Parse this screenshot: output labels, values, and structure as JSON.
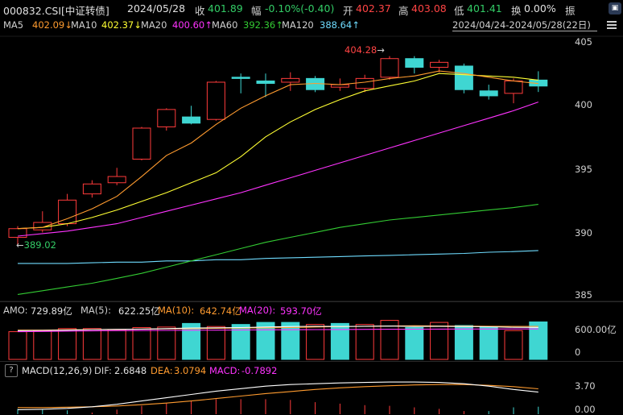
{
  "header": {
    "code": "000832.CSI[中证转债]",
    "date": "2024/05/28",
    "close_label": "收",
    "close_value": "401.89",
    "change_label": "幅",
    "change_value": "-0.10%(-0.40)",
    "open_label": "开",
    "open_value": "402.37",
    "high_label": "高",
    "high_value": "403.08",
    "low_label": "低",
    "low_value": "401.41",
    "turnover_label": "换",
    "turnover_value": "0.00%",
    "amplitude_label": "振"
  },
  "ma_legend": {
    "ma5_label": "MA5",
    "ma5_value": "402.09↓",
    "ma10_label": "MA10",
    "ma10_value": "402.37↓",
    "ma20_label": "MA20",
    "ma20_value": "400.60↑",
    "ma60_label": "MA60",
    "ma60_value": "392.36↑",
    "ma120_label": "MA120",
    "ma120_value": "388.64↑",
    "date_range": "2024/04/24-2024/05/28(22日)"
  },
  "price_axis": {
    "ticks": [
      "405",
      "400",
      "395",
      "390",
      "385"
    ],
    "max_annotation": "404.28",
    "min_annotation": "389.02"
  },
  "volume_legend": {
    "amo_label": "AMO:",
    "amo_value": "729.89亿",
    "ma5_label": "MA(5):",
    "ma5_value": "622.25亿",
    "ma10_label": "MA(10):",
    "ma10_value": "642.74亿",
    "ma20_label": "MA(20):",
    "ma20_value": "593.70亿",
    "ticks": [
      "600.00亿",
      "0"
    ]
  },
  "macd_legend": {
    "help_label": "?",
    "title": "MACD(12,26,9)",
    "dif_label": "DIF:",
    "dif_value": "2.6848",
    "dea_label": "DEA:",
    "dea_value": "3.0794",
    "macd_label": "MACD:",
    "macd_value": "-0.7892",
    "ticks": [
      "3.70",
      "0.00"
    ]
  },
  "colors": {
    "up": "#ff3b3b",
    "down": "#3fd6d2",
    "ma5": "#ffffff",
    "ma10": "#ffff33",
    "ma20": "#ff33ff",
    "ma60": "#33cc33",
    "ma120": "#6fdcff",
    "price_orange": "#ff9b2f",
    "green_text": "#33cc66",
    "red_text": "#ff4444"
  },
  "chart_data": [
    {
      "type": "candlestick",
      "title": "000832.CSI[中证转债]",
      "y_range": [
        384.8,
        405.9
      ],
      "candles": [
        {
          "open": 389.7,
          "close": 390.4,
          "high": 390.6,
          "low": 389.0
        },
        {
          "open": 390.3,
          "close": 390.9,
          "high": 391.8,
          "low": 390.1
        },
        {
          "open": 390.8,
          "close": 392.7,
          "high": 393.2,
          "low": 390.6
        },
        {
          "open": 393.2,
          "close": 394.0,
          "high": 394.3,
          "low": 392.9
        },
        {
          "open": 394.1,
          "close": 394.6,
          "high": 395.3,
          "low": 393.9
        },
        {
          "open": 396.0,
          "close": 398.5,
          "high": 398.6,
          "low": 395.9
        },
        {
          "open": 398.6,
          "close": 400.0,
          "high": 400.1,
          "low": 398.3
        },
        {
          "open": 399.4,
          "close": 398.9,
          "high": 400.3,
          "low": 398.8
        },
        {
          "open": 399.2,
          "close": 402.2,
          "high": 402.3,
          "low": 399.1
        },
        {
          "open": 402.6,
          "close": 402.5,
          "high": 402.9,
          "low": 401.3
        },
        {
          "open": 402.3,
          "close": 402.1,
          "high": 402.9,
          "low": 401.0
        },
        {
          "open": 402.2,
          "close": 402.5,
          "high": 403.0,
          "low": 401.5
        },
        {
          "open": 402.5,
          "close": 401.6,
          "high": 402.7,
          "low": 401.4
        },
        {
          "open": 401.8,
          "close": 402.0,
          "high": 402.5,
          "low": 401.5
        },
        {
          "open": 401.7,
          "close": 402.5,
          "high": 402.8,
          "low": 401.4
        },
        {
          "open": 402.6,
          "close": 404.1,
          "high": 404.3,
          "low": 402.4
        },
        {
          "open": 404.1,
          "close": 403.4,
          "high": 404.3,
          "low": 402.9
        },
        {
          "open": 403.4,
          "close": 403.8,
          "high": 404.0,
          "low": 403.0
        },
        {
          "open": 403.5,
          "close": 401.6,
          "high": 403.7,
          "low": 401.3
        },
        {
          "open": 401.5,
          "close": 401.1,
          "high": 402.0,
          "low": 400.8
        },
        {
          "open": 401.3,
          "close": 402.3,
          "high": 402.5,
          "low": 400.5
        },
        {
          "open": 402.37,
          "close": 401.89,
          "high": 403.08,
          "low": 401.41
        }
      ],
      "ma5": [
        390.4,
        390.5,
        391.2,
        392.0,
        393.0,
        394.6,
        396.3,
        397.3,
        398.8,
        400.1,
        401.1,
        402.0,
        402.1,
        402.0,
        402.2,
        402.5,
        402.7,
        403.1,
        402.9,
        402.6,
        402.3,
        402.09
      ],
      "ma10": [
        390.4,
        390.5,
        390.8,
        391.3,
        391.9,
        392.6,
        393.3,
        394.1,
        394.9,
        396.2,
        397.8,
        399.0,
        400.0,
        400.8,
        401.5,
        401.9,
        402.3,
        402.9,
        402.8,
        402.7,
        402.6,
        402.37
      ],
      "ma20": [
        389.8,
        390.0,
        390.2,
        390.5,
        390.8,
        391.3,
        391.8,
        392.3,
        392.8,
        393.3,
        393.9,
        394.5,
        395.1,
        395.7,
        396.3,
        396.9,
        397.5,
        398.1,
        398.7,
        399.3,
        399.9,
        400.6
      ],
      "ma60": [
        385.1,
        385.4,
        385.7,
        386.0,
        386.4,
        386.8,
        387.3,
        387.8,
        388.3,
        388.8,
        389.3,
        389.7,
        390.1,
        390.5,
        390.8,
        391.1,
        391.3,
        391.5,
        391.7,
        391.9,
        392.1,
        392.36
      ],
      "ma120": [
        387.6,
        387.6,
        387.6,
        387.65,
        387.7,
        387.7,
        387.8,
        387.8,
        387.9,
        387.9,
        388.0,
        388.05,
        388.1,
        388.15,
        388.2,
        388.25,
        388.3,
        388.35,
        388.4,
        388.5,
        388.55,
        388.64
      ]
    },
    {
      "type": "bar",
      "title": "AMO",
      "y_range": [
        0,
        800
      ],
      "values": [
        540,
        560,
        600,
        600,
        580,
        620,
        630,
        700,
        640,
        680,
        720,
        720,
        680,
        700,
        680,
        760,
        620,
        720,
        660,
        640,
        560,
        729.89
      ],
      "directions": [
        "up",
        "up",
        "up",
        "up",
        "up",
        "up",
        "up",
        "down",
        "up",
        "down",
        "down",
        "down",
        "up",
        "down",
        "up",
        "up",
        "down",
        "up",
        "down",
        "down",
        "up",
        "down"
      ],
      "ma5": [
        560,
        565,
        570,
        580,
        585,
        590,
        600,
        610,
        615,
        620,
        630,
        640,
        645,
        640,
        645,
        650,
        640,
        645,
        640,
        635,
        625,
        622.25
      ],
      "ma10": [
        570,
        570,
        575,
        580,
        585,
        590,
        595,
        600,
        605,
        610,
        615,
        620,
        630,
        640,
        645,
        650,
        655,
        650,
        648,
        645,
        643,
        642.74
      ],
      "ma20": [
        540,
        545,
        550,
        555,
        560,
        562,
        565,
        568,
        570,
        572,
        575,
        578,
        580,
        582,
        585,
        587,
        588,
        590,
        591,
        592,
        593,
        593.7
      ]
    },
    {
      "type": "line",
      "title": "MACD(12,26,9)",
      "y_range": [
        0,
        4.5
      ],
      "dif": [
        0.55,
        0.6,
        0.7,
        0.9,
        1.2,
        1.6,
        2.0,
        2.4,
        2.8,
        3.1,
        3.4,
        3.6,
        3.7,
        3.8,
        3.85,
        3.9,
        3.9,
        3.85,
        3.7,
        3.4,
        3.0,
        2.6848
      ],
      "dea": [
        0.8,
        0.8,
        0.85,
        0.9,
        1.0,
        1.15,
        1.35,
        1.6,
        1.9,
        2.2,
        2.5,
        2.75,
        3.0,
        3.2,
        3.35,
        3.45,
        3.55,
        3.6,
        3.6,
        3.5,
        3.35,
        3.0794
      ],
      "macd": [
        -0.5,
        -0.4,
        -0.3,
        0.0,
        0.4,
        0.9,
        1.3,
        1.6,
        1.8,
        1.8,
        1.8,
        1.7,
        1.4,
        1.2,
        1.0,
        0.9,
        0.7,
        0.5,
        0.2,
        -0.2,
        -0.7,
        -0.7892
      ]
    }
  ]
}
